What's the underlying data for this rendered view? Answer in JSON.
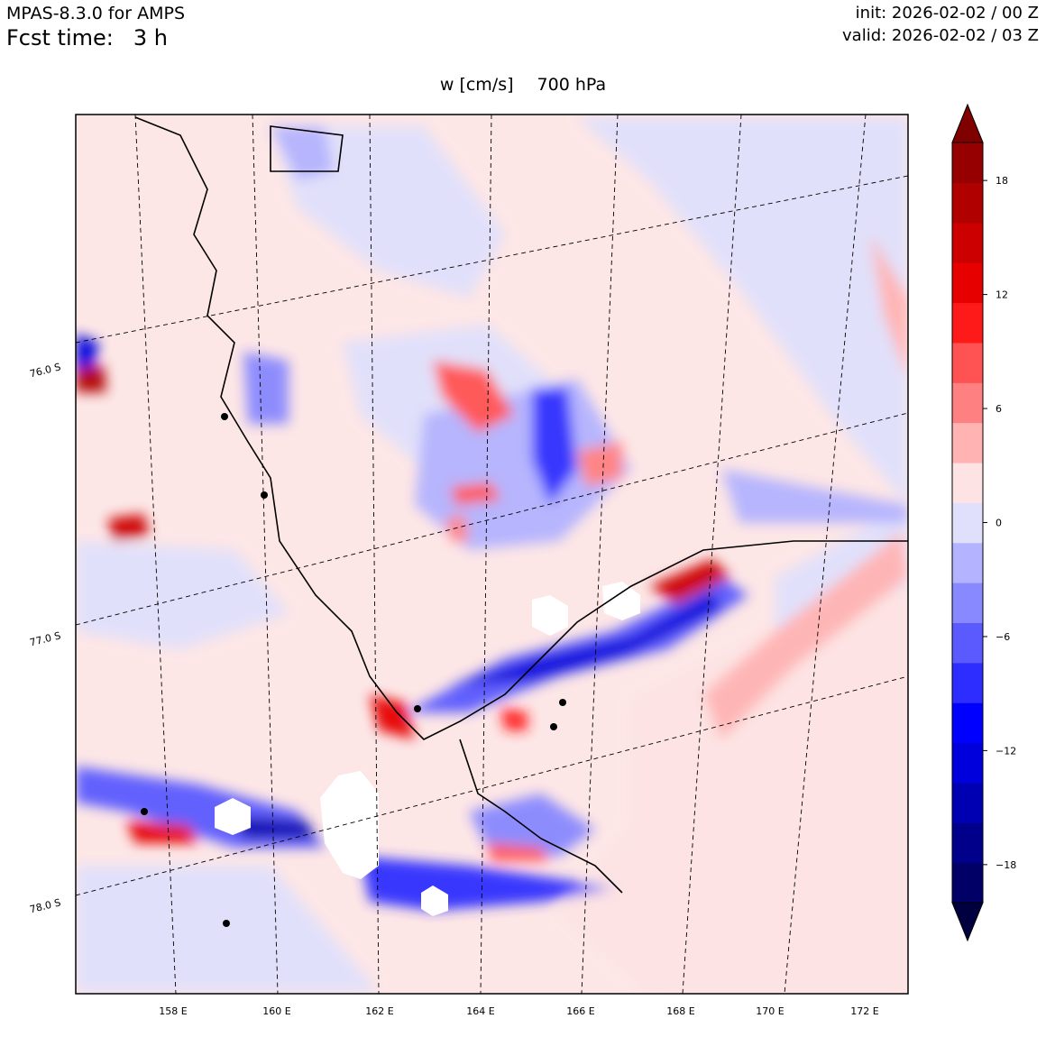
{
  "header": {
    "model": "MPAS-8.3.0 for AMPS",
    "fcst_label": "Fcst time:",
    "fcst_value": "3 h",
    "init": "init: 2026-02-02 / 00 Z",
    "valid": "valid: 2026-02-02 / 03 Z"
  },
  "plot": {
    "variable": "w [cm/s]",
    "level": "700 hPa"
  },
  "map": {
    "lon_labels": [
      "158 E",
      "160 E",
      "162 E",
      "164 E",
      "166 E",
      "168 E",
      "170 E",
      "172 E"
    ],
    "lat_labels": [
      "76.0 S",
      "77.0 S",
      "78.0 S"
    ],
    "gridlines": "dashed"
  },
  "colorbar": {
    "tick_labels": [
      "18",
      "12",
      "6",
      "0",
      "−6",
      "−12",
      "−18"
    ],
    "tick_values": [
      18,
      12,
      6,
      0,
      -6,
      -12,
      -18
    ],
    "range": [
      -20,
      20
    ],
    "extend": "both",
    "colors": [
      "#000040",
      "#000066",
      "#00008b",
      "#0000b3",
      "#0000dd",
      "#0000ff",
      "#2d2dff",
      "#5a5aff",
      "#8888ff",
      "#b3b3ff",
      "#e0e0fc",
      "#fde3e3",
      "#ffb3b3",
      "#ff8080",
      "#ff5252",
      "#ff1a1a",
      "#e60000",
      "#cc0000",
      "#b00000",
      "#960000",
      "#800000"
    ]
  }
}
